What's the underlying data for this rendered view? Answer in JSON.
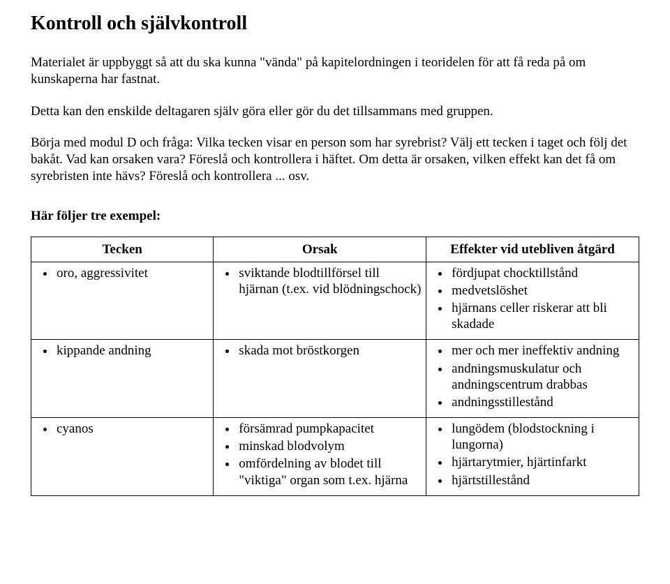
{
  "title": "Kontroll och självkontroll",
  "paragraphs": {
    "p1": "Materialet är uppbyggt så att du ska kunna \"vända\" på kapitelordningen i teoridelen för att få reda på om kunskaperna har fastnat.",
    "p2": "Detta kan den enskilde deltagaren själv göra eller gör du det tillsammans med gruppen.",
    "p3": "Börja med modul D och fråga: Vilka tecken visar en person som har syrebrist? Välj ett tecken i taget och följ det bakåt. Vad kan orsaken vara? Föreslå och kontrollera i häftet. Om detta är orsaken, vilken effekt kan det få om syrebristen inte hävs? Föreslå och kontrollera ... osv."
  },
  "subheading": "Här följer tre exempel:",
  "table": {
    "headers": {
      "h1": "Tecken",
      "h2": "Orsak",
      "h3": "Effekter vid utebliven åtgärd"
    },
    "rows": [
      {
        "tecken": [
          "oro, aggressivitet"
        ],
        "orsak": [
          "sviktande blodtillförsel till hjärnan (t.ex. vid blödningschock)"
        ],
        "effekter": [
          "fördjupat chocktillstånd",
          "medvetslöshet",
          "hjärnans celler riskerar att bli skadade"
        ]
      },
      {
        "tecken": [
          "kippande andning"
        ],
        "orsak": [
          "skada mot bröstkorgen"
        ],
        "effekter": [
          "mer och mer ineffektiv andning",
          "andningsmuskulatur och andningscentrum drabbas",
          "andningsstillestånd"
        ]
      },
      {
        "tecken": [
          "cyanos"
        ],
        "orsak": [
          "försämrad pumpkapacitet",
          "minskad blodvolym",
          "omfördelning av blodet till \"viktiga\" organ som t.ex. hjärna"
        ],
        "effekter": [
          "lungödem (blodstockning i lungorna)",
          "hjärtarytmier, hjärtinfarkt",
          "hjärtstillestånd"
        ]
      }
    ]
  }
}
